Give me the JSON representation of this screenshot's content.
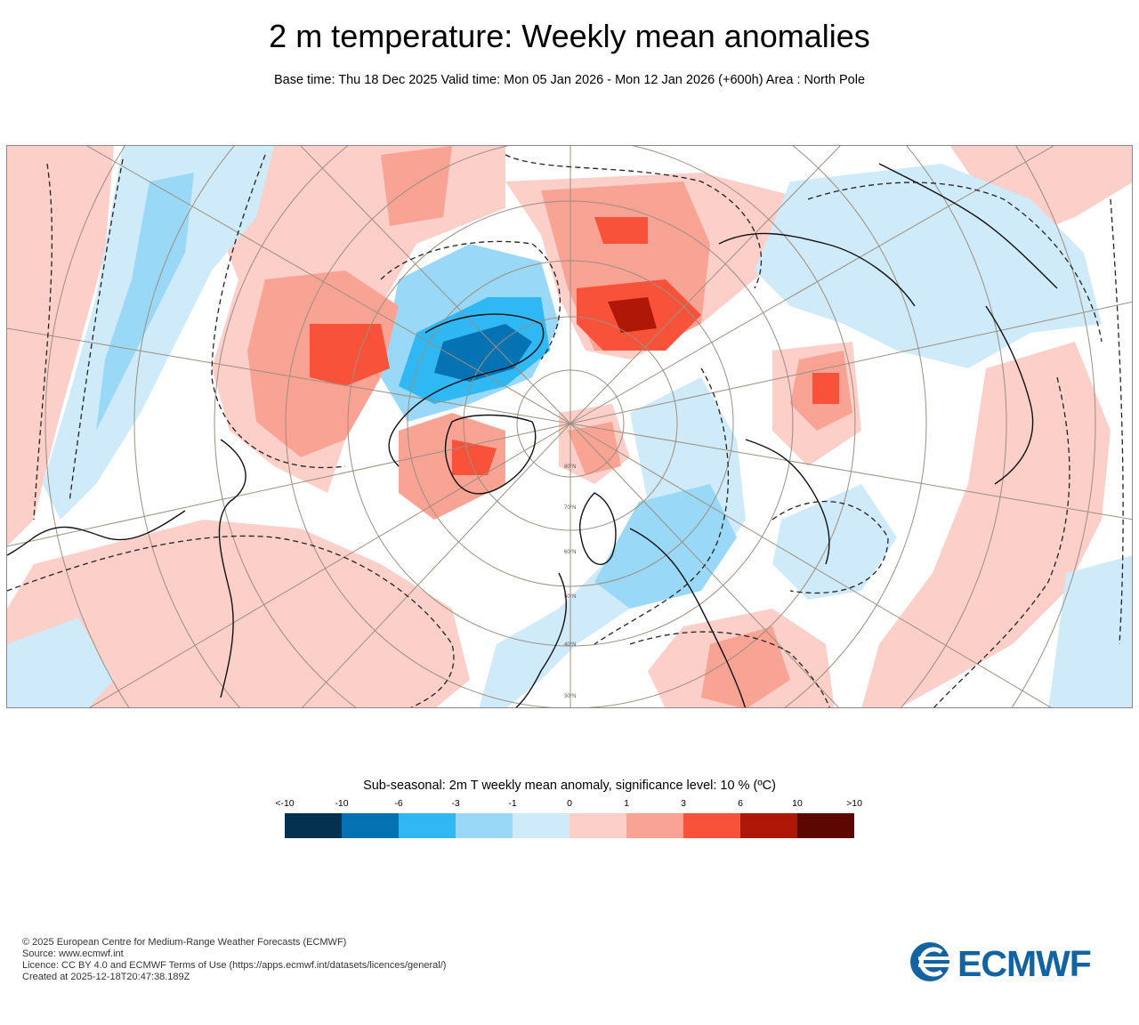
{
  "title": "2 m temperature: Weekly mean anomalies",
  "subtitle": "Base time: Thu 18 Dec 2025 Valid time: Mon 05 Jan 2026 - Mon 12 Jan 2026 (+600h) Area : North Pole",
  "map": {
    "lat_labels": [
      "80°N",
      "70°N",
      "60°N",
      "50°N",
      "40°N",
      "30°N"
    ]
  },
  "legend": {
    "title": "Sub-seasonal: 2m T weekly mean anomaly, significance level: 10 % (ºC)",
    "ticks": [
      "<-10",
      "-10",
      "-6",
      "-3",
      "-1",
      "0",
      "1",
      "3",
      "6",
      "10",
      ">10"
    ],
    "colors": [
      "#04314f",
      "#0472b3",
      "#2fb8f4",
      "#9ad8f8",
      "#cfeaf9",
      "#fccfc9",
      "#f9a394",
      "#f8533a",
      "#af1807",
      "#5c0800"
    ]
  },
  "footer": {
    "line1": "© 2025 European Centre for Medium-Range Weather Forecasts (ECMWF)",
    "line2": "Source: www.ecmwf.int",
    "line3": "Licence: CC BY 4.0 and ECMWF Terms of Use (https://apps.ecmwf.int/datasets/licences/general/)",
    "line4": "Created at 2025-12-18T20:47:38.189Z"
  },
  "logo": {
    "text": "ECMWF",
    "color": "#1263a0"
  }
}
